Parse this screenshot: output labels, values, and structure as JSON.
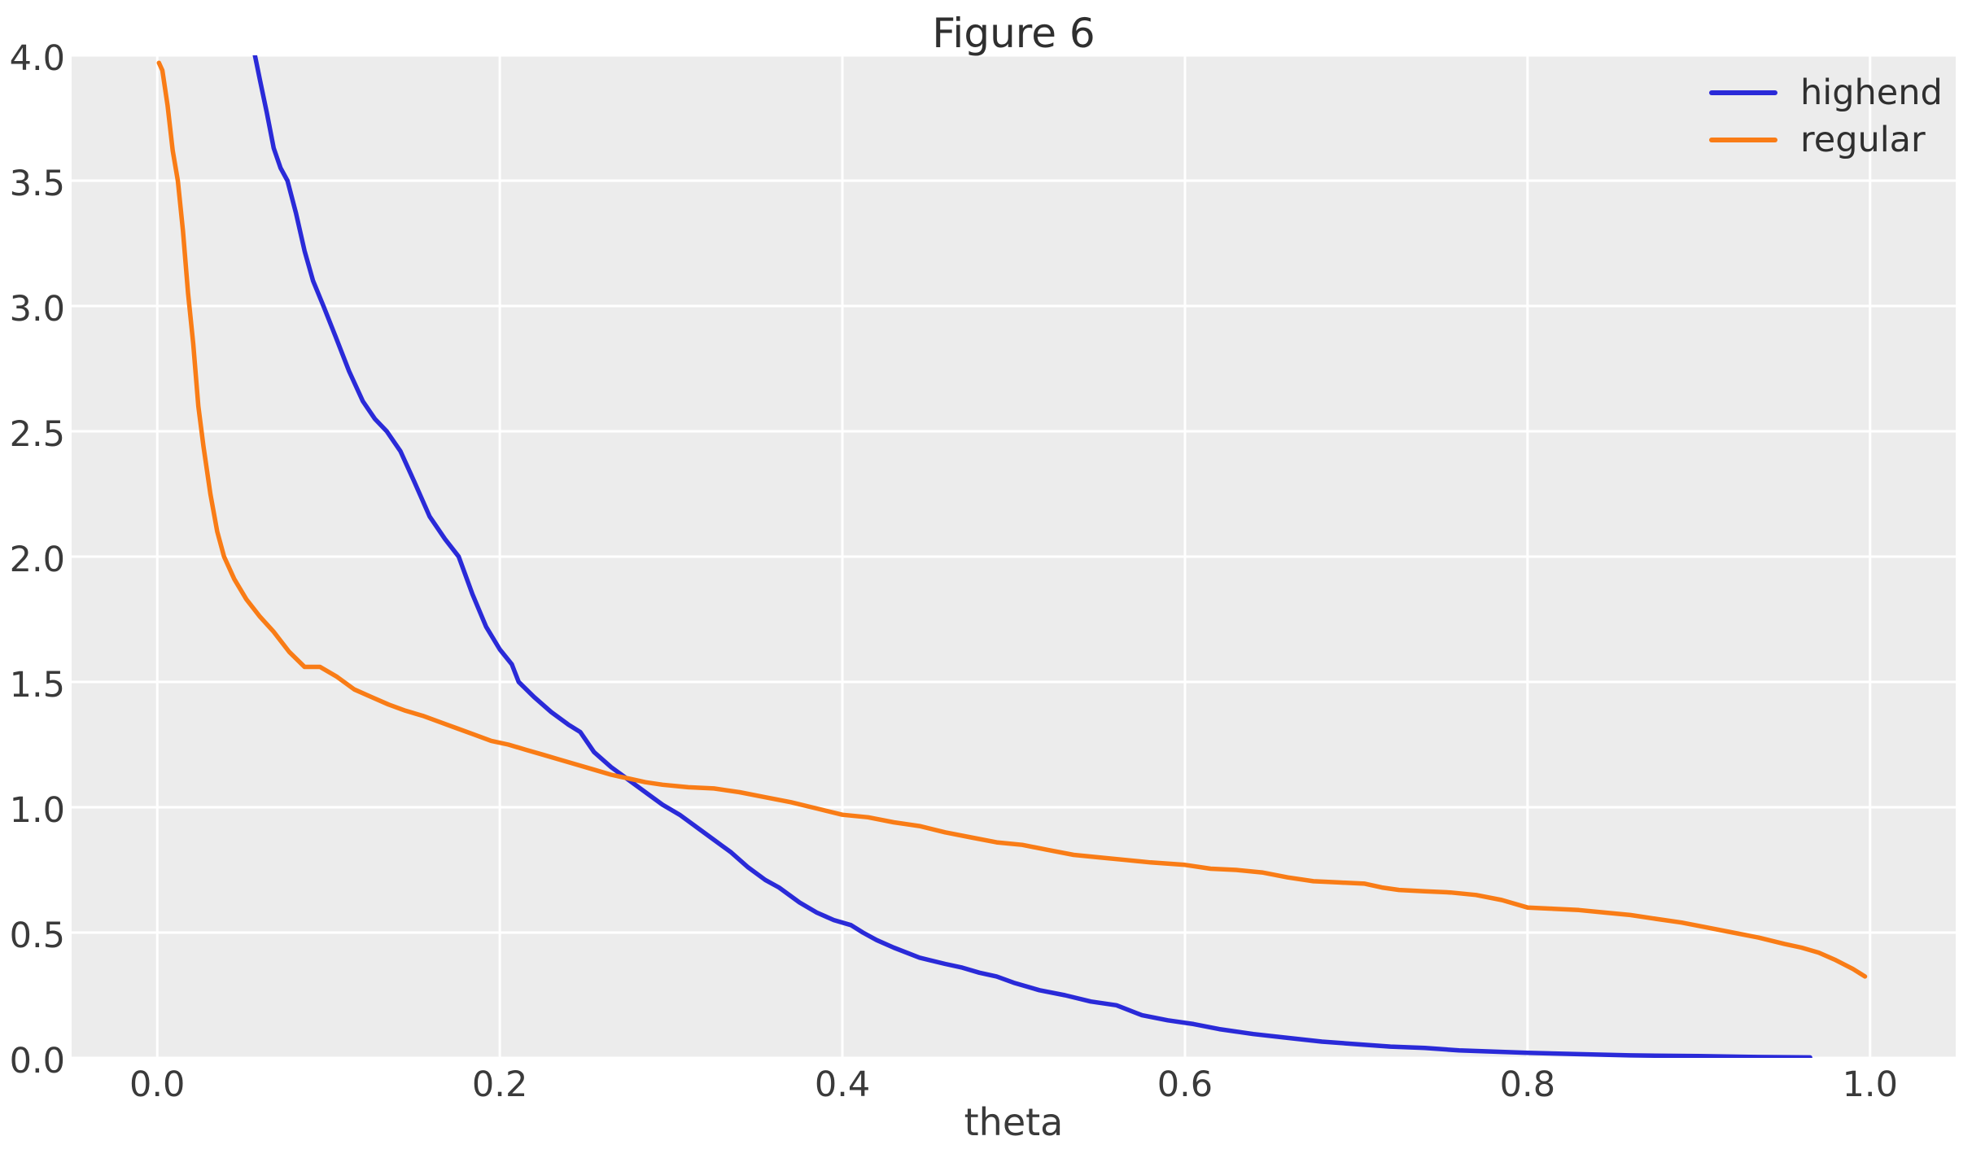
{
  "figure": {
    "title": "Figure 6",
    "xlabel": "theta"
  },
  "colors": {
    "figure_bg": "#ffffff",
    "axes_bg": "#ececec",
    "grid": "#ffffff",
    "tick_text": "#3a3a3a",
    "highend": "#2a2ad8",
    "regular": "#f97c16"
  },
  "legend": {
    "position": "upper right",
    "items": [
      {
        "label": "highend"
      },
      {
        "label": "regular"
      }
    ]
  },
  "chart_data": {
    "type": "line",
    "title": "Figure 6",
    "xlabel": "theta",
    "ylabel": "",
    "xlim": [
      -0.05,
      1.05
    ],
    "ylim": [
      0,
      4
    ],
    "grid": true,
    "legend_position": "upper right",
    "xticks": [
      0.0,
      0.2,
      0.4,
      0.6,
      0.8,
      1.0
    ],
    "xtick_labels": [
      "0.0",
      "0.2",
      "0.4",
      "0.6",
      "0.8",
      "1.0"
    ],
    "yticks": [
      0.0,
      0.5,
      1.0,
      1.5,
      2.0,
      2.5,
      3.0,
      3.5,
      4.0
    ],
    "ytick_labels": [
      "0.0",
      "0.5",
      "1.0",
      "1.5",
      "2.0",
      "2.5",
      "3.0",
      "3.5",
      "4.0"
    ],
    "series": [
      {
        "name": "highend",
        "color": "#2a2ad8",
        "x": [
          0.057,
          0.06,
          0.064,
          0.068,
          0.072,
          0.076,
          0.081,
          0.086,
          0.091,
          0.097,
          0.104,
          0.112,
          0.12,
          0.127,
          0.134,
          0.142,
          0.15,
          0.159,
          0.168,
          0.176,
          0.184,
          0.192,
          0.2,
          0.207,
          0.211,
          0.22,
          0.23,
          0.24,
          0.247,
          0.255,
          0.265,
          0.275,
          0.285,
          0.295,
          0.305,
          0.315,
          0.325,
          0.335,
          0.345,
          0.355,
          0.363,
          0.375,
          0.385,
          0.395,
          0.405,
          0.412,
          0.42,
          0.43,
          0.445,
          0.46,
          0.47,
          0.48,
          0.49,
          0.5,
          0.515,
          0.53,
          0.545,
          0.56,
          0.575,
          0.59,
          0.605,
          0.62,
          0.64,
          0.66,
          0.68,
          0.7,
          0.72,
          0.74,
          0.76,
          0.78,
          0.8,
          0.83,
          0.86,
          0.9,
          0.93,
          0.965
        ],
        "y": [
          4.0,
          3.9,
          3.77,
          3.63,
          3.55,
          3.5,
          3.37,
          3.22,
          3.1,
          3.0,
          2.88,
          2.74,
          2.62,
          2.55,
          2.5,
          2.42,
          2.3,
          2.16,
          2.07,
          2.0,
          1.85,
          1.72,
          1.63,
          1.57,
          1.5,
          1.44,
          1.38,
          1.33,
          1.3,
          1.22,
          1.16,
          1.11,
          1.06,
          1.01,
          0.97,
          0.92,
          0.87,
          0.82,
          0.76,
          0.71,
          0.68,
          0.62,
          0.58,
          0.55,
          0.53,
          0.5,
          0.47,
          0.44,
          0.4,
          0.375,
          0.36,
          0.34,
          0.325,
          0.3,
          0.27,
          0.25,
          0.225,
          0.21,
          0.17,
          0.15,
          0.135,
          0.115,
          0.095,
          0.08,
          0.065,
          0.055,
          0.045,
          0.04,
          0.03,
          0.025,
          0.02,
          0.015,
          0.01,
          0.007,
          0.004,
          0.002
        ]
      },
      {
        "name": "regular",
        "color": "#f97c16",
        "x": [
          0.001,
          0.003,
          0.006,
          0.009,
          0.012,
          0.015,
          0.018,
          0.021,
          0.024,
          0.027,
          0.031,
          0.035,
          0.039,
          0.045,
          0.052,
          0.06,
          0.068,
          0.077,
          0.086,
          0.095,
          0.105,
          0.115,
          0.125,
          0.135,
          0.145,
          0.155,
          0.165,
          0.175,
          0.185,
          0.195,
          0.205,
          0.215,
          0.225,
          0.235,
          0.245,
          0.255,
          0.265,
          0.275,
          0.285,
          0.295,
          0.31,
          0.325,
          0.34,
          0.355,
          0.37,
          0.385,
          0.4,
          0.415,
          0.43,
          0.445,
          0.46,
          0.475,
          0.49,
          0.505,
          0.52,
          0.535,
          0.55,
          0.565,
          0.58,
          0.6,
          0.615,
          0.63,
          0.645,
          0.66,
          0.675,
          0.69,
          0.705,
          0.715,
          0.725,
          0.74,
          0.755,
          0.77,
          0.785,
          0.8,
          0.815,
          0.83,
          0.845,
          0.86,
          0.875,
          0.89,
          0.905,
          0.92,
          0.935,
          0.95,
          0.96,
          0.97,
          0.98,
          0.99,
          0.997
        ],
        "y": [
          3.97,
          3.94,
          3.8,
          3.62,
          3.5,
          3.3,
          3.05,
          2.85,
          2.6,
          2.44,
          2.25,
          2.1,
          2.0,
          1.91,
          1.83,
          1.76,
          1.7,
          1.62,
          1.56,
          1.56,
          1.52,
          1.47,
          1.44,
          1.41,
          1.385,
          1.365,
          1.34,
          1.315,
          1.29,
          1.265,
          1.25,
          1.23,
          1.21,
          1.19,
          1.17,
          1.15,
          1.13,
          1.115,
          1.1,
          1.09,
          1.08,
          1.075,
          1.06,
          1.04,
          1.02,
          0.995,
          0.97,
          0.96,
          0.94,
          0.925,
          0.9,
          0.88,
          0.86,
          0.85,
          0.83,
          0.81,
          0.8,
          0.79,
          0.78,
          0.77,
          0.755,
          0.75,
          0.74,
          0.72,
          0.705,
          0.7,
          0.695,
          0.68,
          0.67,
          0.665,
          0.66,
          0.65,
          0.63,
          0.6,
          0.595,
          0.59,
          0.58,
          0.57,
          0.555,
          0.54,
          0.52,
          0.5,
          0.48,
          0.455,
          0.44,
          0.42,
          0.39,
          0.355,
          0.325
        ]
      }
    ]
  }
}
